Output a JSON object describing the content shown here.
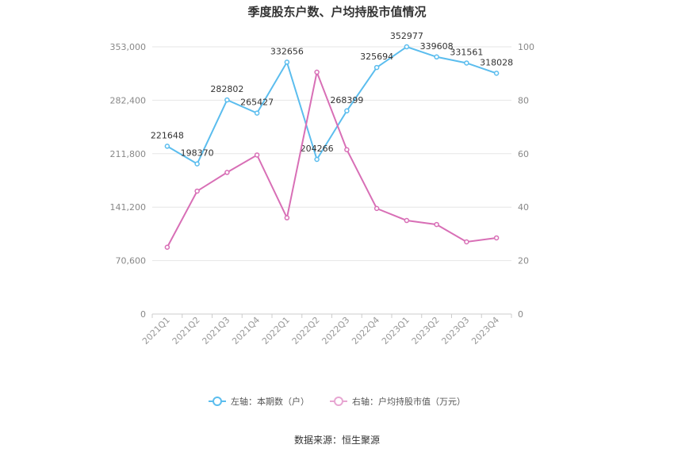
{
  "title": "季度股东户数、户均持股市值情况",
  "source": "数据来源：恒生聚源",
  "chart_data": {
    "type": "line",
    "categories": [
      "2021Q1",
      "2021Q2",
      "2021Q3",
      "2021Q4",
      "2022Q1",
      "2022Q2",
      "2022Q3",
      "2022Q4",
      "2023Q1",
      "2023Q2",
      "2023Q3",
      "2023Q4"
    ],
    "series": [
      {
        "name": "左轴：本期数（户）",
        "axis": "left",
        "color": "#5bbdee",
        "values": [
          221648,
          198370,
          282802,
          265427,
          332656,
          204266,
          268399,
          325694,
          352977,
          339608,
          331561,
          318028
        ],
        "labels": [
          "221648",
          "198370",
          "282802",
          "265427",
          "332656",
          "204266",
          "268399",
          "325694",
          "352977",
          "339608",
          "331561",
          "318028"
        ]
      },
      {
        "name": "右轴：户均持股市值（万元）",
        "axis": "right",
        "color": "#d86fb6",
        "values": [
          25,
          46,
          53,
          59.5,
          36,
          90.5,
          61.5,
          39.5,
          35,
          33.5,
          27,
          28.5
        ]
      }
    ],
    "left_axis": {
      "min": 0,
      "max": 353000,
      "ticks": [
        "0",
        "70,600",
        "141,200",
        "211,800",
        "282,400",
        "353,000"
      ]
    },
    "right_axis": {
      "min": 0,
      "max": 100,
      "ticks": [
        "0",
        "20",
        "40",
        "60",
        "80",
        "100"
      ]
    },
    "grid": true,
    "legend_position": "bottom"
  }
}
